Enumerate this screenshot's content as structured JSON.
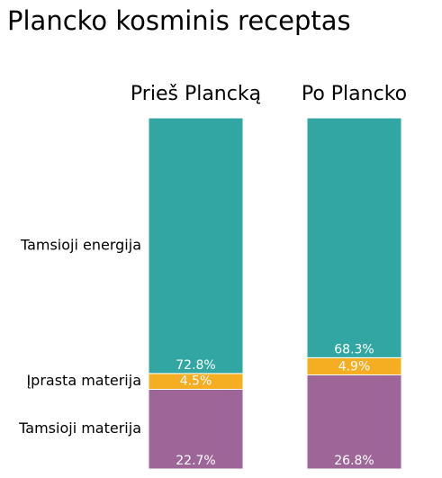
{
  "chart_data": {
    "type": "stacked-bar",
    "title": "Plancko kosminis receptas",
    "categories": [
      "Prieš Plancką",
      "Po Plancko"
    ],
    "series": [
      {
        "name": "Tamsioji materija",
        "color": "#9e6599",
        "values": [
          22.7,
          26.8
        ],
        "value_labels": [
          "22.7%",
          "26.8%"
        ]
      },
      {
        "name": "Įprasta materija",
        "color": "#f5ae22",
        "values": [
          4.5,
          4.9
        ],
        "value_labels": [
          "4.5%",
          "4.9%"
        ]
      },
      {
        "name": "Tamsioji energija",
        "color": "#31a6a2",
        "values": [
          72.8,
          68.3
        ],
        "value_labels": [
          "72.8%",
          "68.3%"
        ]
      }
    ]
  }
}
